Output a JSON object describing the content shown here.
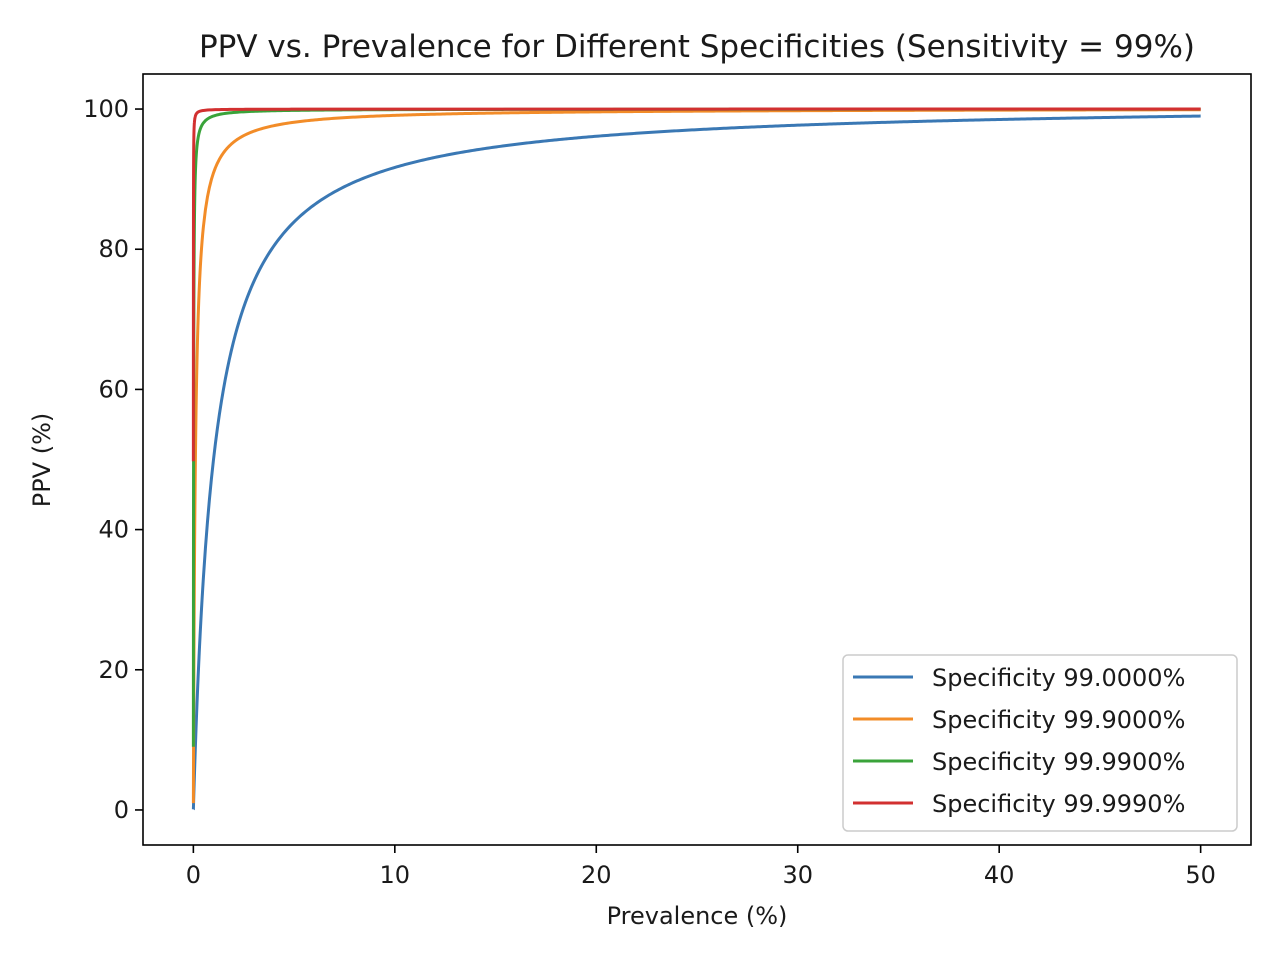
{
  "chart_data": {
    "type": "line",
    "title": "PPV vs. Prevalence for Different Specificities (Sensitivity = 99%)",
    "xlabel": "Prevalence (%)",
    "ylabel": "PPV (%)",
    "xlim": [
      -2.5,
      52.5
    ],
    "ylim": [
      -5,
      105
    ],
    "xticks": [
      0,
      10,
      20,
      30,
      40,
      50
    ],
    "yticks": [
      0,
      20,
      40,
      60,
      80,
      100
    ],
    "xtick_labels": [
      "0",
      "10",
      "20",
      "30",
      "40",
      "50"
    ],
    "ytick_labels": [
      "0",
      "20",
      "40",
      "60",
      "80",
      "100"
    ],
    "grid": false,
    "legend_position": "lower-right",
    "sensitivity": 0.99,
    "x_range": [
      0.001,
      50
    ],
    "series": [
      {
        "name": "Specificity 99.0000%",
        "specificity": 0.99,
        "color": "#3a78b4"
      },
      {
        "name": "Specificity 99.9000%",
        "specificity": 0.999,
        "color": "#f28c28"
      },
      {
        "name": "Specificity 99.9900%",
        "specificity": 0.9999,
        "color": "#3aa33a"
      },
      {
        "name": "Specificity 99.9990%",
        "specificity": 0.99999,
        "color": "#d23030"
      }
    ]
  }
}
